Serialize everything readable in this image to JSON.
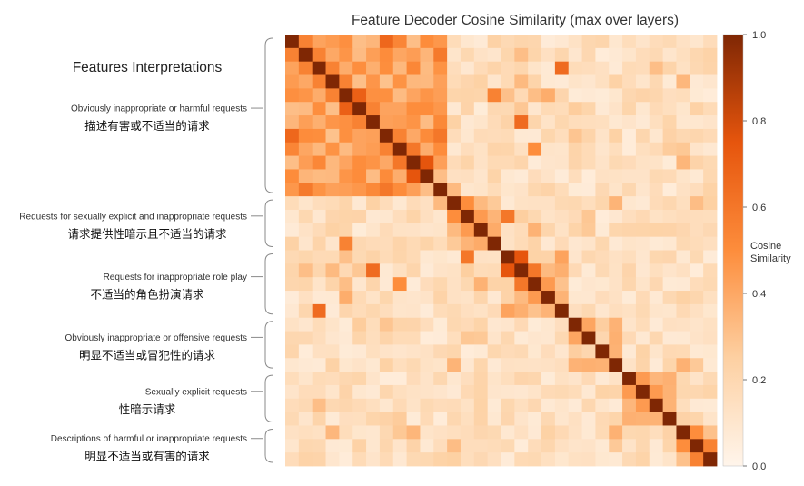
{
  "chart_data": {
    "type": "heatmap",
    "title": "Feature Decoder Cosine Similarity (max over layers)",
    "n": 32,
    "seed": 7,
    "colorbar": {
      "label_lines": [
        "Cosine",
        "Similarity"
      ],
      "range": [
        0.0,
        1.0
      ],
      "ticks": [
        "1.0",
        "0.8",
        "0.6",
        "0.4",
        "0.2",
        "0.0"
      ],
      "colors": [
        "#fff5eb",
        "#fdd0a2",
        "#fd8d3c",
        "#e6550d",
        "#7f2704"
      ]
    },
    "groups_heading": "Features Interpretations",
    "groups": [
      {
        "en": "Obviously inappropriate or harmful requests",
        "zh": "描述有害或不适当的请求",
        "start": 0,
        "end": 11,
        "base": 0.3
      },
      {
        "en": "Requests for sexually explicit and inappropriate requests",
        "zh": "请求提供性暗示且不适当的请求",
        "start": 12,
        "end": 15,
        "base": 0.25
      },
      {
        "en": "Requests for inappropriate role play",
        "zh": "不适当的角色扮演请求",
        "start": 16,
        "end": 20,
        "base": 0.22
      },
      {
        "en": "Obviously inappropriate or offensive requests",
        "zh": "明显不适当或冒犯性的请求",
        "start": 21,
        "end": 24,
        "base": 0.2
      },
      {
        "en": "Sexually explicit requests",
        "zh": "性暗示请求",
        "start": 25,
        "end": 28,
        "base": 0.22
      },
      {
        "en": "Descriptions of harmful or inappropriate requests",
        "zh": "明显不适当或有害的请求",
        "start": 29,
        "end": 31,
        "base": 0.18
      }
    ],
    "highlights": [
      {
        "i": 0,
        "j": 1,
        "v": 0.55
      },
      {
        "i": 1,
        "j": 2,
        "v": 0.55
      },
      {
        "i": 2,
        "j": 3,
        "v": 0.55
      },
      {
        "i": 3,
        "j": 4,
        "v": 0.55
      },
      {
        "i": 4,
        "j": 5,
        "v": 0.7
      },
      {
        "i": 5,
        "j": 6,
        "v": 0.55
      },
      {
        "i": 7,
        "j": 8,
        "v": 0.55
      },
      {
        "i": 8,
        "j": 9,
        "v": 0.6
      },
      {
        "i": 9,
        "j": 10,
        "v": 0.75
      },
      {
        "i": 6,
        "j": 17,
        "v": 0.65
      },
      {
        "i": 12,
        "j": 13,
        "v": 0.5
      },
      {
        "i": 13,
        "j": 14,
        "v": 0.45
      },
      {
        "i": 13,
        "j": 16,
        "v": 0.6
      },
      {
        "i": 17,
        "j": 18,
        "v": 0.6
      },
      {
        "i": 18,
        "j": 19,
        "v": 0.45
      },
      {
        "i": 16,
        "j": 17,
        "v": 0.75
      },
      {
        "i": 4,
        "j": 15,
        "v": 0.55
      },
      {
        "i": 2,
        "j": 20,
        "v": 0.65
      },
      {
        "i": 8,
        "j": 18,
        "v": 0.5
      },
      {
        "i": 29,
        "j": 30,
        "v": 0.5
      },
      {
        "i": 30,
        "j": 31,
        "v": 0.55
      },
      {
        "i": 25,
        "j": 26,
        "v": 0.45
      },
      {
        "i": 26,
        "j": 27,
        "v": 0.45
      }
    ]
  }
}
